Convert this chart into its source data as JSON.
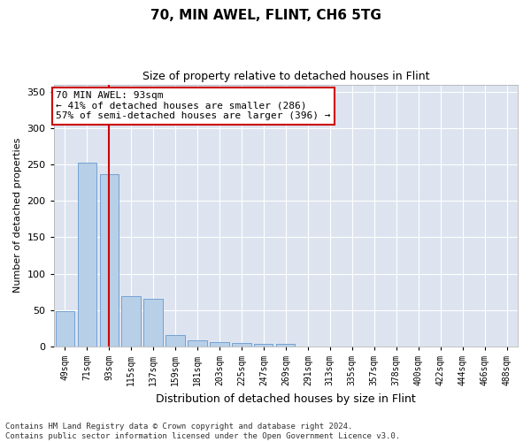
{
  "title": "70, MIN AWEL, FLINT, CH6 5TG",
  "subtitle": "Size of property relative to detached houses in Flint",
  "xlabel": "Distribution of detached houses by size in Flint",
  "ylabel": "Number of detached properties",
  "categories": [
    "49sqm",
    "71sqm",
    "93sqm",
    "115sqm",
    "137sqm",
    "159sqm",
    "181sqm",
    "203sqm",
    "225sqm",
    "247sqm",
    "269sqm",
    "291sqm",
    "313sqm",
    "335sqm",
    "357sqm",
    "378sqm",
    "400sqm",
    "422sqm",
    "444sqm",
    "466sqm",
    "488sqm"
  ],
  "values": [
    49,
    252,
    237,
    69,
    65,
    16,
    8,
    6,
    5,
    4,
    4,
    0,
    0,
    0,
    0,
    0,
    0,
    0,
    0,
    0,
    0
  ],
  "bar_color": "#b8cfe8",
  "bar_edgecolor": "#6699cc",
  "redline_index": 2,
  "redline_color": "#cc0000",
  "annotation_text": "70 MIN AWEL: 93sqm\n← 41% of detached houses are smaller (286)\n57% of semi-detached houses are larger (396) →",
  "annotation_box_facecolor": "#ffffff",
  "annotation_box_edgecolor": "#cc0000",
  "ylim": [
    0,
    360
  ],
  "yticks": [
    0,
    50,
    100,
    150,
    200,
    250,
    300,
    350
  ],
  "plot_bg_color": "#dde4f0",
  "grid_color": "#ffffff",
  "fig_bg_color": "#ffffff",
  "footer": "Contains HM Land Registry data © Crown copyright and database right 2024.\nContains public sector information licensed under the Open Government Licence v3.0.",
  "title_fontsize": 11,
  "subtitle_fontsize": 9,
  "ylabel_fontsize": 8,
  "xlabel_fontsize": 9,
  "tick_fontsize": 7,
  "ytick_fontsize": 8,
  "annotation_fontsize": 8,
  "footer_fontsize": 6.5
}
